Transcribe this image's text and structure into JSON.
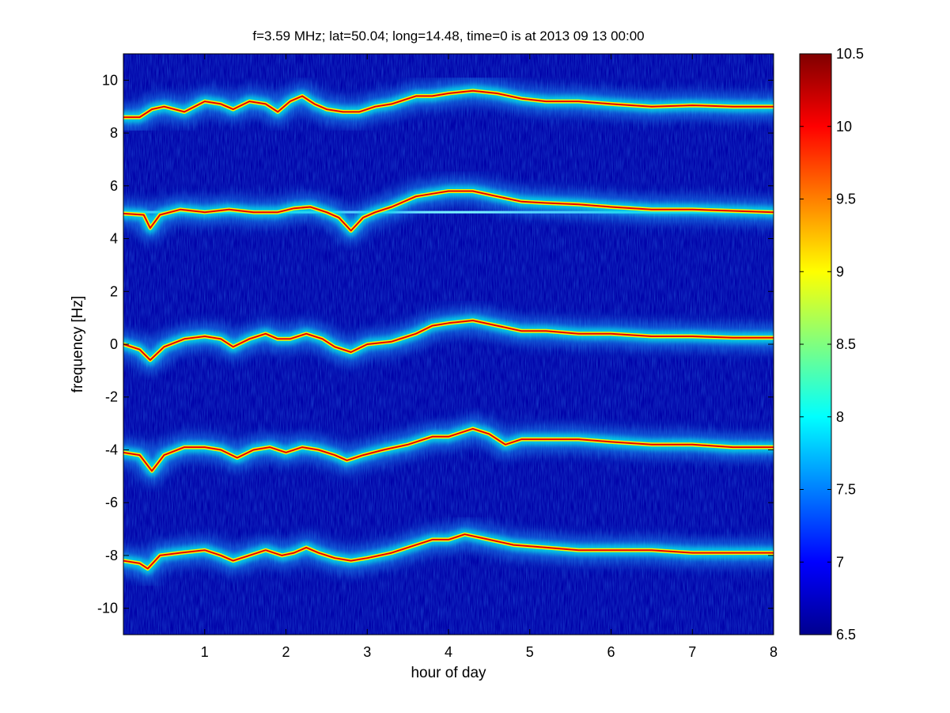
{
  "chart_data": {
    "type": "heatmap",
    "title": "f=3.59 MHz;  lat=50.04; long=14.48, time=0 is at 2013 09 13 00:00",
    "xlabel": "hour of day",
    "ylabel": "frequency [Hz]",
    "xlim": [
      0,
      8
    ],
    "ylim": [
      -11,
      11
    ],
    "x_ticks": [
      1,
      2,
      3,
      4,
      5,
      6,
      7,
      8
    ],
    "y_ticks": [
      -10,
      -8,
      -6,
      -4,
      -2,
      0,
      2,
      4,
      6,
      8,
      10
    ],
    "colorbar": {
      "range": [
        6.5,
        10.5
      ],
      "ticks": [
        6.5,
        7,
        7.5,
        8,
        8.5,
        9,
        9.5,
        10,
        10.5
      ],
      "colormap": "jet"
    },
    "background_level": 6.5,
    "traces": [
      {
        "points": [
          [
            0,
            8.6
          ],
          [
            0.2,
            8.6
          ],
          [
            0.35,
            8.9
          ],
          [
            0.5,
            9.0
          ],
          [
            0.75,
            8.8
          ],
          [
            1.0,
            9.2
          ],
          [
            1.2,
            9.1
          ],
          [
            1.35,
            8.9
          ],
          [
            1.55,
            9.2
          ],
          [
            1.75,
            9.1
          ],
          [
            1.9,
            8.8
          ],
          [
            2.05,
            9.2
          ],
          [
            2.2,
            9.4
          ],
          [
            2.35,
            9.1
          ],
          [
            2.5,
            8.9
          ],
          [
            2.7,
            8.8
          ],
          [
            2.9,
            8.8
          ],
          [
            3.1,
            9.0
          ],
          [
            3.3,
            9.1
          ],
          [
            3.6,
            9.4
          ],
          [
            3.8,
            9.4
          ],
          [
            4.0,
            9.5
          ],
          [
            4.3,
            9.6
          ],
          [
            4.6,
            9.5
          ],
          [
            4.9,
            9.3
          ],
          [
            5.2,
            9.2
          ],
          [
            5.6,
            9.2
          ],
          [
            6.0,
            9.1
          ],
          [
            6.5,
            9.0
          ],
          [
            7.0,
            9.05
          ],
          [
            7.5,
            9.0
          ],
          [
            8.0,
            9.0
          ]
        ]
      },
      {
        "points": [
          [
            0,
            4.95
          ],
          [
            0.25,
            4.9
          ],
          [
            0.33,
            4.4
          ],
          [
            0.45,
            4.9
          ],
          [
            0.7,
            5.1
          ],
          [
            1.0,
            5.0
          ],
          [
            1.3,
            5.1
          ],
          [
            1.6,
            5.0
          ],
          [
            1.9,
            5.0
          ],
          [
            2.1,
            5.15
          ],
          [
            2.3,
            5.2
          ],
          [
            2.5,
            5.0
          ],
          [
            2.65,
            4.8
          ],
          [
            2.8,
            4.3
          ],
          [
            2.95,
            4.8
          ],
          [
            3.1,
            5.0
          ],
          [
            3.3,
            5.2
          ],
          [
            3.6,
            5.6
          ],
          [
            3.8,
            5.7
          ],
          [
            4.0,
            5.8
          ],
          [
            4.3,
            5.8
          ],
          [
            4.6,
            5.6
          ],
          [
            4.9,
            5.4
          ],
          [
            5.2,
            5.35
          ],
          [
            5.6,
            5.3
          ],
          [
            6.0,
            5.2
          ],
          [
            6.5,
            5.1
          ],
          [
            7.0,
            5.1
          ],
          [
            7.5,
            5.05
          ],
          [
            8.0,
            5.0
          ]
        ]
      },
      {
        "points": [
          [
            0,
            0.0
          ],
          [
            0.2,
            -0.2
          ],
          [
            0.33,
            -0.6
          ],
          [
            0.5,
            -0.1
          ],
          [
            0.75,
            0.2
          ],
          [
            1.0,
            0.3
          ],
          [
            1.2,
            0.2
          ],
          [
            1.35,
            -0.1
          ],
          [
            1.55,
            0.2
          ],
          [
            1.75,
            0.4
          ],
          [
            1.9,
            0.2
          ],
          [
            2.05,
            0.2
          ],
          [
            2.25,
            0.4
          ],
          [
            2.45,
            0.2
          ],
          [
            2.6,
            -0.1
          ],
          [
            2.8,
            -0.3
          ],
          [
            3.0,
            0.0
          ],
          [
            3.3,
            0.1
          ],
          [
            3.6,
            0.4
          ],
          [
            3.8,
            0.7
          ],
          [
            4.0,
            0.8
          ],
          [
            4.3,
            0.9
          ],
          [
            4.6,
            0.7
          ],
          [
            4.9,
            0.5
          ],
          [
            5.2,
            0.5
          ],
          [
            5.6,
            0.4
          ],
          [
            6.0,
            0.4
          ],
          [
            6.5,
            0.3
          ],
          [
            7.0,
            0.3
          ],
          [
            7.5,
            0.25
          ],
          [
            8.0,
            0.25
          ]
        ]
      },
      {
        "points": [
          [
            0,
            -4.1
          ],
          [
            0.2,
            -4.2
          ],
          [
            0.35,
            -4.8
          ],
          [
            0.5,
            -4.2
          ],
          [
            0.75,
            -3.9
          ],
          [
            1.0,
            -3.9
          ],
          [
            1.2,
            -4.0
          ],
          [
            1.4,
            -4.3
          ],
          [
            1.6,
            -4.0
          ],
          [
            1.8,
            -3.9
          ],
          [
            2.0,
            -4.1
          ],
          [
            2.2,
            -3.9
          ],
          [
            2.4,
            -4.0
          ],
          [
            2.6,
            -4.2
          ],
          [
            2.75,
            -4.4
          ],
          [
            2.95,
            -4.2
          ],
          [
            3.2,
            -4.0
          ],
          [
            3.5,
            -3.8
          ],
          [
            3.8,
            -3.5
          ],
          [
            4.0,
            -3.5
          ],
          [
            4.3,
            -3.2
          ],
          [
            4.5,
            -3.4
          ],
          [
            4.7,
            -3.8
          ],
          [
            4.9,
            -3.6
          ],
          [
            5.2,
            -3.6
          ],
          [
            5.6,
            -3.6
          ],
          [
            6.0,
            -3.7
          ],
          [
            6.5,
            -3.8
          ],
          [
            7.0,
            -3.8
          ],
          [
            7.5,
            -3.9
          ],
          [
            8.0,
            -3.9
          ]
        ]
      },
      {
        "points": [
          [
            0,
            -8.2
          ],
          [
            0.2,
            -8.3
          ],
          [
            0.3,
            -8.5
          ],
          [
            0.45,
            -8.0
          ],
          [
            0.7,
            -7.9
          ],
          [
            1.0,
            -7.8
          ],
          [
            1.2,
            -8.0
          ],
          [
            1.35,
            -8.2
          ],
          [
            1.55,
            -8.0
          ],
          [
            1.75,
            -7.8
          ],
          [
            1.95,
            -8.0
          ],
          [
            2.1,
            -7.9
          ],
          [
            2.25,
            -7.7
          ],
          [
            2.4,
            -7.9
          ],
          [
            2.6,
            -8.1
          ],
          [
            2.8,
            -8.2
          ],
          [
            3.0,
            -8.1
          ],
          [
            3.3,
            -7.9
          ],
          [
            3.6,
            -7.6
          ],
          [
            3.8,
            -7.4
          ],
          [
            4.0,
            -7.4
          ],
          [
            4.2,
            -7.2
          ],
          [
            4.5,
            -7.4
          ],
          [
            4.8,
            -7.6
          ],
          [
            5.2,
            -7.7
          ],
          [
            5.6,
            -7.8
          ],
          [
            6.0,
            -7.8
          ],
          [
            6.5,
            -7.8
          ],
          [
            7.0,
            -7.9
          ],
          [
            7.5,
            -7.9
          ],
          [
            8.0,
            -7.9
          ]
        ]
      }
    ],
    "horizontal_lines": [
      {
        "y": 5.0,
        "x": [
          0,
          8
        ]
      }
    ]
  }
}
